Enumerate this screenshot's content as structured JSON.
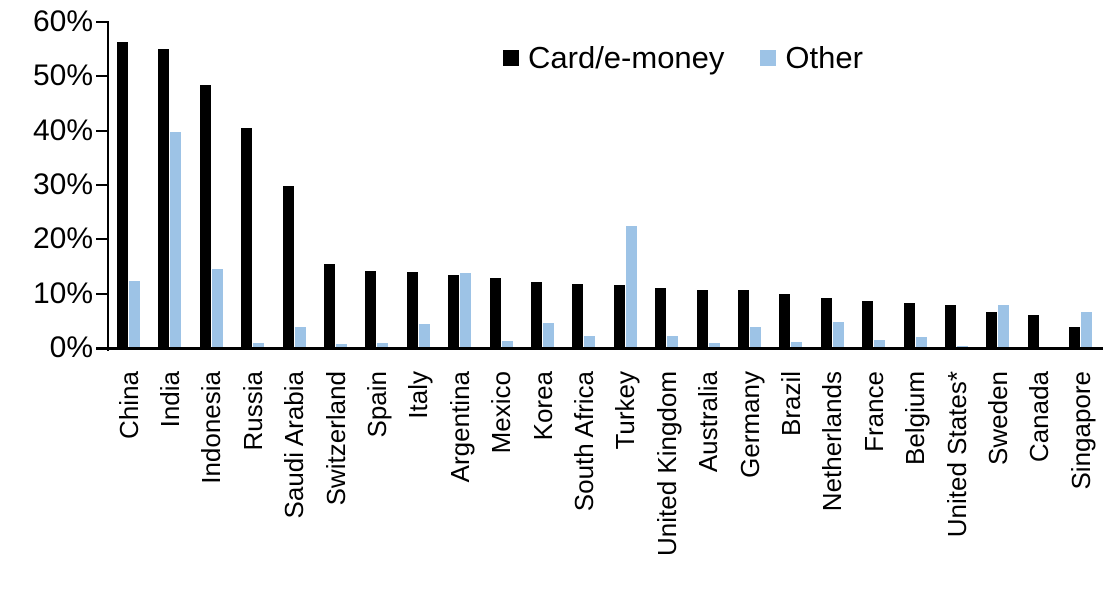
{
  "chart_data": {
    "type": "bar",
    "title": "",
    "xlabel": "",
    "ylabel": "",
    "ylim": [
      0,
      60
    ],
    "ytick_values": [
      0,
      10,
      20,
      30,
      40,
      50,
      60
    ],
    "ytick_labels": [
      "0%",
      "10%",
      "20%",
      "30%",
      "40%",
      "50%",
      "60%"
    ],
    "grid": false,
    "legend_position": "top-center",
    "axis_color": "#000000",
    "background_color": "#FFFFFF",
    "categories": [
      "China",
      "India",
      "Indonesia",
      "Russia",
      "Saudi Arabia",
      "Switzerland",
      "Spain",
      "Italy",
      "Argentina",
      "Mexico",
      "Korea",
      "South Africa",
      "Turkey",
      "United Kingdom",
      "Australia",
      "Germany",
      "Brazil",
      "Netherlands",
      "France",
      "Belgium",
      "United States*",
      "Sweden",
      "Canada",
      "Singapore"
    ],
    "series": [
      {
        "name": "Card/e-money",
        "color": "#000000",
        "values": [
          56.3,
          55.0,
          48.4,
          40.5,
          29.8,
          15.5,
          14.1,
          14.0,
          13.4,
          12.9,
          12.2,
          11.7,
          11.6,
          11.0,
          10.7,
          10.6,
          10.0,
          9.2,
          8.7,
          8.2,
          7.9,
          6.6,
          6.0,
          3.9
        ]
      },
      {
        "name": "Other",
        "color": "#9DC3E6",
        "values": [
          12.3,
          39.7,
          14.5,
          1.0,
          3.8,
          0.7,
          1.0,
          4.5,
          13.8,
          1.3,
          4.6,
          2.3,
          22.5,
          2.3,
          1.0,
          3.9,
          1.2,
          4.8,
          1.5,
          2.0,
          0.4,
          8.0,
          0.0,
          6.7
        ]
      }
    ]
  }
}
